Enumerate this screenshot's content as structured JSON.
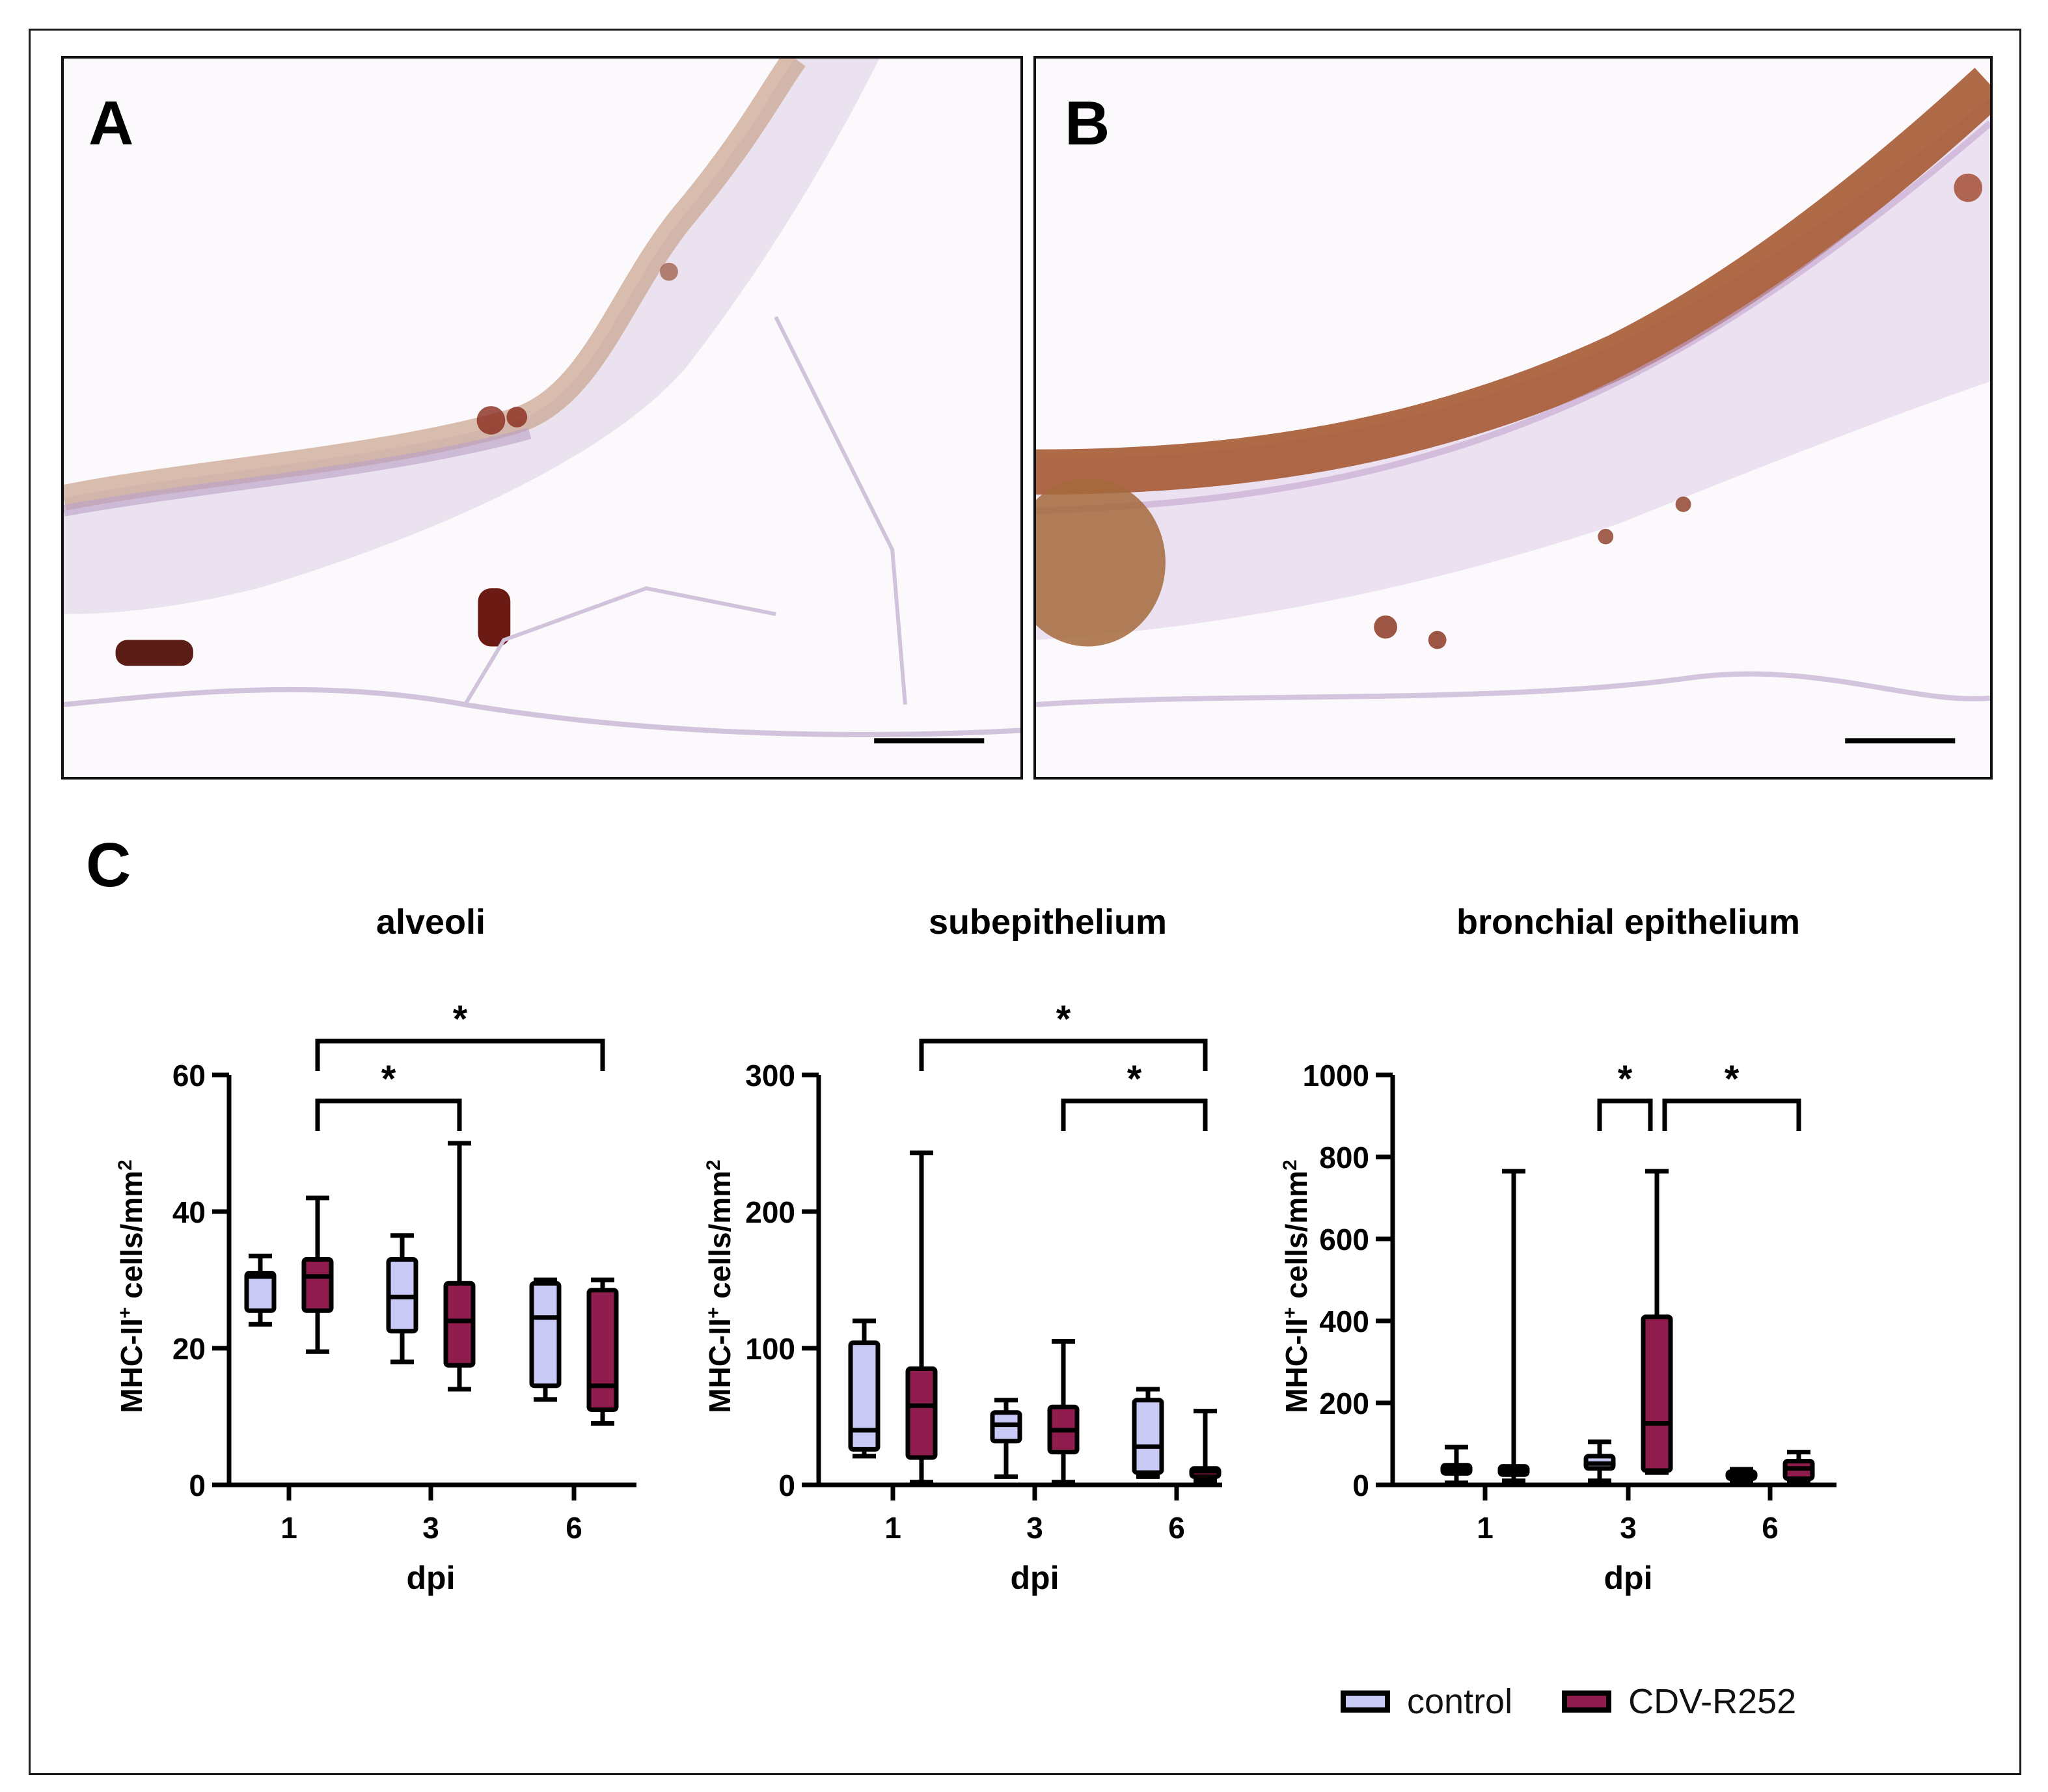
{
  "panels": {
    "a": {
      "label": "A"
    },
    "b": {
      "label": "B"
    },
    "c": {
      "label": "C"
    }
  },
  "colors": {
    "control": "#c9c9f5",
    "cdv": "#8e1c4c",
    "stroke": "#000000"
  },
  "legend": [
    {
      "label": "control",
      "color": "#c9c9f5"
    },
    {
      "label": "CDV-R252",
      "color": "#8e1c4c"
    }
  ],
  "chart_data": [
    {
      "type": "box",
      "title": "alveoli",
      "xlabel": "dpi",
      "ylabel_main": "MHC-II",
      "ylabel_sup": "+",
      "ylabel_rest": " cells/mm",
      "ylabel_sup2": "2",
      "categories": [
        "1",
        "3",
        "6"
      ],
      "ylim": [
        0,
        60
      ],
      "yticks": [
        0,
        20,
        40,
        60
      ],
      "series": [
        {
          "name": "control",
          "boxes": [
            {
              "min": 23.5,
              "q1": 25.5,
              "median": 30.5,
              "q3": 31,
              "max": 33.5
            },
            {
              "min": 18,
              "q1": 22.5,
              "median": 27.5,
              "q3": 33,
              "max": 36.5
            },
            {
              "min": 12.5,
              "q1": 14.5,
              "median": 24.5,
              "q3": 29.5,
              "max": 30
            }
          ]
        },
        {
          "name": "CDV-R252",
          "boxes": [
            {
              "min": 19.5,
              "q1": 25.5,
              "median": 30.5,
              "q3": 33,
              "max": 42
            },
            {
              "min": 14,
              "q1": 17.5,
              "median": 24,
              "q3": 29.5,
              "max": 50
            },
            {
              "min": 9,
              "q1": 11,
              "median": 14.5,
              "q3": 28.5,
              "max": 30
            }
          ]
        }
      ],
      "significance": [
        {
          "from": "1",
          "to": "6",
          "label": "*",
          "level": 2
        },
        {
          "from": "1",
          "to": "3",
          "label": "*",
          "level": 1
        }
      ]
    },
    {
      "type": "box",
      "title": "subepithelium",
      "xlabel": "dpi",
      "ylabel_main": "MHC-II",
      "ylabel_sup": "+",
      "ylabel_rest": " cells/mm",
      "ylabel_sup2": "2",
      "categories": [
        "1",
        "3",
        "6"
      ],
      "ylim": [
        0,
        300
      ],
      "yticks": [
        0,
        100,
        200,
        300
      ],
      "series": [
        {
          "name": "control",
          "boxes": [
            {
              "min": 21,
              "q1": 26,
              "median": 40,
              "q3": 104,
              "max": 120
            },
            {
              "min": 6,
              "q1": 32,
              "median": 44,
              "q3": 53,
              "max": 62
            },
            {
              "min": 6,
              "q1": 9,
              "median": 28,
              "q3": 62,
              "max": 70
            }
          ]
        },
        {
          "name": "CDV-R252",
          "boxes": [
            {
              "min": 2,
              "q1": 20,
              "median": 58,
              "q3": 85,
              "max": 243
            },
            {
              "min": 2,
              "q1": 24,
              "median": 40,
              "q3": 57,
              "max": 105
            },
            {
              "min": 3,
              "q1": 6,
              "median": 10,
              "q3": 12,
              "max": 54
            }
          ]
        }
      ],
      "significance": [
        {
          "from": "1",
          "to": "6",
          "label": "*",
          "level": 2
        },
        {
          "from": "3",
          "to": "6",
          "label": "*",
          "level": 1
        }
      ]
    },
    {
      "type": "box",
      "title": "bronchial epithelium",
      "xlabel": "dpi",
      "ylabel_main": "MHC-II",
      "ylabel_sup": "+",
      "ylabel_rest": " cells/mm",
      "ylabel_sup2": "2",
      "categories": [
        "1",
        "3",
        "6"
      ],
      "ylim": [
        0,
        1000
      ],
      "yticks": [
        0,
        200,
        400,
        600,
        800,
        1000
      ],
      "series": [
        {
          "name": "control",
          "boxes": [
            {
              "min": 5,
              "q1": 28,
              "median": 38,
              "q3": 48,
              "max": 92
            },
            {
              "min": 10,
              "q1": 40,
              "median": 52,
              "q3": 70,
              "max": 105
            },
            {
              "min": 5,
              "q1": 15,
              "median": 22,
              "q3": 32,
              "max": 38
            }
          ]
        },
        {
          "name": "CDV-R252",
          "boxes": [
            {
              "min": 10,
              "q1": 25,
              "median": 35,
              "q3": 45,
              "max": 765
            },
            {
              "min": 30,
              "q1": 35,
              "median": 150,
              "q3": 410,
              "max": 765
            },
            {
              "min": 5,
              "q1": 15,
              "median": 40,
              "q3": 58,
              "max": 80
            }
          ]
        }
      ],
      "significance": [
        {
          "from": "3a",
          "to": "3b",
          "label": "*",
          "level": 1
        },
        {
          "from": "3b",
          "to": "6",
          "label": "*",
          "level": 1
        }
      ]
    }
  ]
}
